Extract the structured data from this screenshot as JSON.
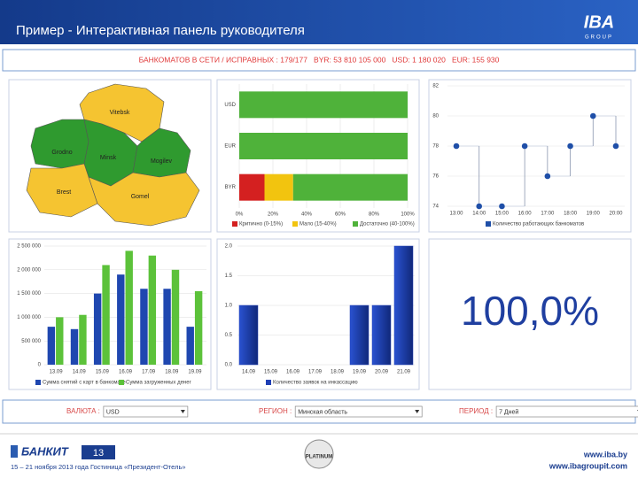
{
  "header": {
    "title": "Пример - Интерактивная панель руководителя",
    "logo": "IBA",
    "logo_sub": "GROUP"
  },
  "status": "БАНКОМАТОВ В СЕТИ / ИСПРАВНЫХ : 179/177   BYR: 53 810 105 000   USD: 1 180 020   EUR: 155 930",
  "map": {
    "regions": [
      {
        "name": "Vitebsk",
        "color": "#f5c431"
      },
      {
        "name": "Grodno",
        "color": "#2f9a2f"
      },
      {
        "name": "Minsk",
        "color": "#2f9a2f"
      },
      {
        "name": "Mogilev",
        "color": "#2f9a2f"
      },
      {
        "name": "Brest",
        "color": "#f5c431"
      },
      {
        "name": "Gomel",
        "color": "#f5c431"
      }
    ]
  },
  "chart_data": [
    {
      "type": "stacked_hbar",
      "categories": [
        "USD",
        "EUR",
        "BYR"
      ],
      "series": [
        {
          "name": "Критично (0-15%)",
          "color": "#d42020",
          "values": [
            0,
            0,
            15
          ]
        },
        {
          "name": "Мало (15-40%)",
          "color": "#f2c40f",
          "values": [
            0,
            0,
            17
          ]
        },
        {
          "name": "Достаточно (40-100%)",
          "color": "#4fb23a",
          "values": [
            100,
            100,
            68
          ]
        }
      ],
      "xlim": [
        0,
        100
      ],
      "xticks": [
        {
          "value": 0,
          "label": "0%"
        },
        {
          "value": 20,
          "label": "20%"
        },
        {
          "value": 40,
          "label": "40%"
        },
        {
          "value": 60,
          "label": "60%"
        },
        {
          "value": 80,
          "label": "80%"
        },
        {
          "value": 100,
          "label": "100%"
        }
      ],
      "grid": true
    },
    {
      "type": "step_dot",
      "categories": [
        "13:00",
        "14:00",
        "15:00",
        "16:00",
        "17:00",
        "18:00",
        "19:00",
        "20:00"
      ],
      "series": [
        {
          "name": "Количество работающих банкоматов",
          "color": "#1f4fa8",
          "values": [
            78,
            74,
            74,
            78,
            76,
            78,
            80,
            78
          ]
        }
      ],
      "ylim": [
        74,
        82
      ],
      "yticks": [
        74,
        76,
        78,
        80,
        82
      ],
      "grid": true
    },
    {
      "type": "grouped_bar",
      "categories": [
        "13.09",
        "14.09",
        "15.09",
        "16.09",
        "17.09",
        "18.09",
        "19.09"
      ],
      "series": [
        {
          "name": "Сумма снятий с карт в банкомате",
          "color": "#1f47b0",
          "values": [
            800000,
            750000,
            1500000,
            1900000,
            1600000,
            1600000,
            800000
          ]
        },
        {
          "name": "Сумма загруженных денег",
          "color": "#5cc23a",
          "values": [
            1000000,
            1050000,
            2100000,
            2400000,
            2300000,
            2000000,
            1550000
          ]
        }
      ],
      "ylim": [
        0,
        2500000
      ],
      "yticks": [
        0,
        {
          "value": 500000,
          "label": "500 000"
        },
        {
          "value": 1000000,
          "label": "1 000 000"
        },
        {
          "value": 1500000,
          "label": "1 500 000"
        },
        {
          "value": 2000000,
          "label": "2 000 000"
        },
        {
          "value": 2500000,
          "label": "2 500 000"
        }
      ],
      "grid": true
    },
    {
      "type": "bar",
      "categories": [
        "14.09",
        "15.09",
        "16.09",
        "17.09",
        "18.09",
        "19.09",
        "20.09",
        "21.09"
      ],
      "series": [
        {
          "name": "Количество заявок на инкассацию",
          "color": "#1f3fb5",
          "values": [
            1,
            0,
            0,
            0,
            0,
            1,
            1,
            2
          ]
        }
      ],
      "ylim": [
        0,
        2
      ],
      "yticks": [
        {
          "value": 0,
          "label": "0.0"
        },
        {
          "value": 0.5,
          "label": "0.5"
        },
        {
          "value": 1,
          "label": "1.0"
        },
        {
          "value": 1.5,
          "label": "1.5"
        },
        {
          "value": 2,
          "label": "2.0"
        }
      ],
      "grid": true
    }
  ],
  "kpi": "100,0%",
  "filters": [
    {
      "label": "ВАЛЮТА :",
      "value": "USD"
    },
    {
      "label": "РЕГИОН :",
      "value": "Минская область"
    },
    {
      "label": "ПЕРИОД :",
      "value": "7 Дней"
    }
  ],
  "footer": {
    "logo": "БАНКИТ",
    "logo_num": "13",
    "badge": "PLATINUM",
    "event": "15 – 21 ноября 2013 года Гостиница «Президент-Отель»",
    "urls": [
      "www.iba.by",
      "www.ibagroupit.com"
    ]
  }
}
